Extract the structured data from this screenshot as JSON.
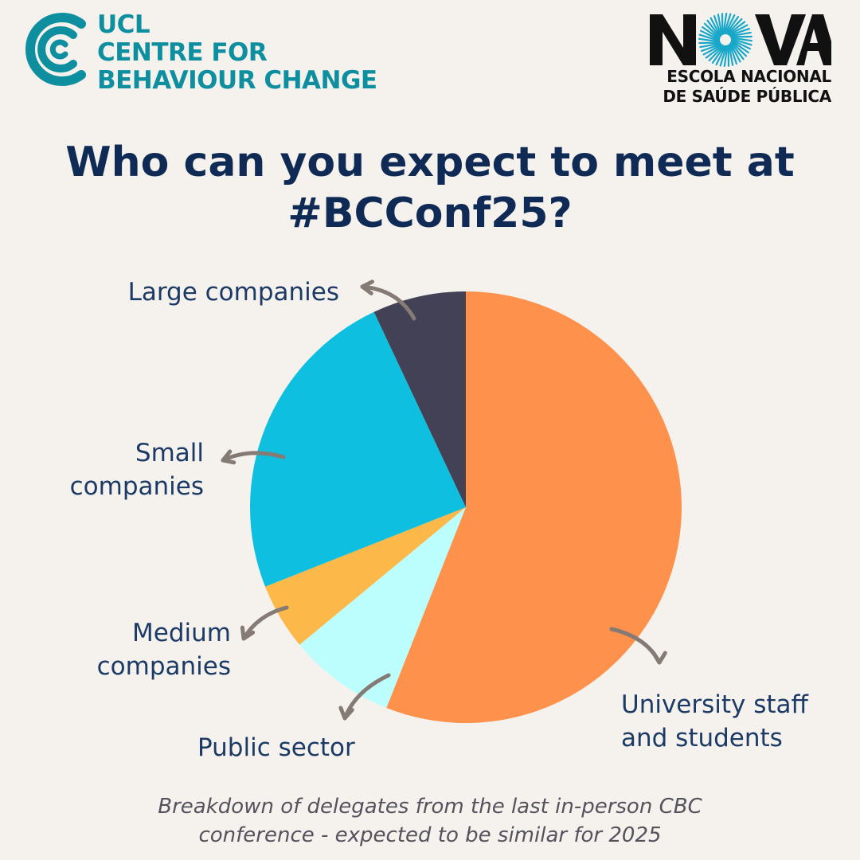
{
  "logos": {
    "ucl": {
      "line1": "UCL",
      "line2": "CENTRE FOR",
      "line3": "BEHAVIOUR CHANGE"
    },
    "nova": {
      "word": "NOVA",
      "line1": "ESCOLA NACIONAL",
      "line2": "DE SAÚDE PÚBLICA"
    }
  },
  "title": {
    "line1": "Who can you expect to meet at",
    "line2": "#BCConf25?"
  },
  "chart_data": {
    "type": "pie",
    "title": "Who can you expect to meet at #BCConf25?",
    "slices": [
      {
        "label_lines": [
          "University staff",
          "and students"
        ],
        "value": 56,
        "color": "#fe914b"
      },
      {
        "label_lines": [
          "Public sector"
        ],
        "value": 8,
        "color": "#bcfefd"
      },
      {
        "label_lines": [
          "Medium",
          "companies"
        ],
        "value": 5,
        "color": "#fdb84a"
      },
      {
        "label_lines": [
          "Small",
          "companies"
        ],
        "value": 24,
        "color": "#0fbfdf"
      },
      {
        "label_lines": [
          "Large companies"
        ],
        "value": 7,
        "color": "#434156"
      }
    ],
    "start": "12 o'clock",
    "direction": "clockwise",
    "legend": "none"
  },
  "caption": {
    "line1": "Breakdown of delegates from the last in-person CBC",
    "line2": "conference  - expected to be similar for 2025"
  },
  "colors": {
    "background": "#f5f1ed",
    "title": "#0e2a55",
    "label": "#1b3a66",
    "arrow": "#857a74",
    "ucl_teal": "#0e8fa0"
  }
}
